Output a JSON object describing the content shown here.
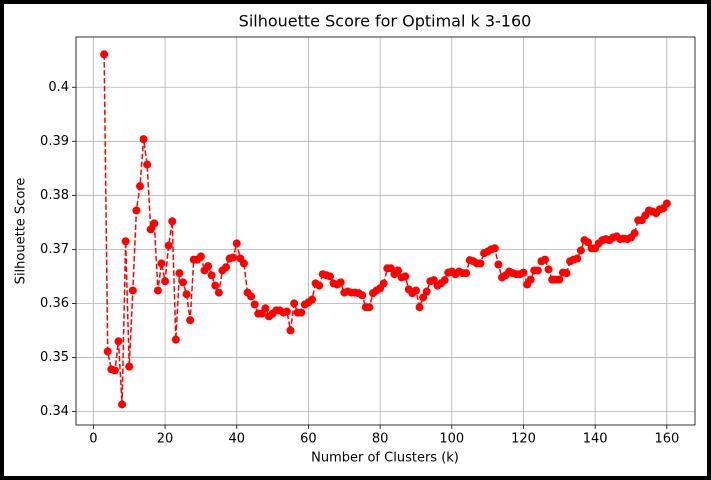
{
  "chart_data": {
    "type": "line",
    "title": "Silhouette Score for Optimal k 3-160",
    "xlabel": "Number of Clusters (k)",
    "ylabel": "Silhouette Score",
    "x": [
      3,
      4,
      5,
      6,
      7,
      8,
      9,
      10,
      11,
      12,
      13,
      14,
      15,
      16,
      17,
      18,
      19,
      20,
      21,
      22,
      23,
      24,
      25,
      26,
      27,
      28,
      29,
      30,
      31,
      32,
      33,
      34,
      35,
      36,
      37,
      38,
      39,
      40,
      41,
      42,
      43,
      44,
      45,
      46,
      47,
      48,
      49,
      50,
      51,
      52,
      53,
      54,
      55,
      56,
      57,
      58,
      59,
      60,
      61,
      62,
      63,
      64,
      65,
      66,
      67,
      68,
      69,
      70,
      71,
      72,
      73,
      74,
      75,
      76,
      77,
      78,
      79,
      80,
      81,
      82,
      83,
      84,
      85,
      86,
      87,
      88,
      89,
      90,
      91,
      92,
      93,
      94,
      95,
      96,
      97,
      98,
      99,
      100,
      101,
      102,
      103,
      104,
      105,
      106,
      107,
      108,
      109,
      110,
      111,
      112,
      113,
      114,
      115,
      116,
      117,
      118,
      119,
      120,
      121,
      122,
      123,
      124,
      125,
      126,
      127,
      128,
      129,
      130,
      131,
      132,
      133,
      134,
      135,
      136,
      137,
      138,
      139,
      140,
      141,
      142,
      143,
      144,
      145,
      146,
      147,
      148,
      149,
      150,
      151,
      152,
      153,
      154,
      155,
      156,
      157,
      158,
      159,
      160
    ],
    "series": [
      {
        "color": "#ff0000",
        "line_style": "dashed",
        "marker": "circle",
        "values": [
          0.4061,
          0.3511,
          0.3478,
          0.3476,
          0.353,
          0.3413,
          0.3715,
          0.3483,
          0.3624,
          0.3772,
          0.3817,
          0.3904,
          0.3857,
          0.3737,
          0.3748,
          0.3624,
          0.3674,
          0.3641,
          0.3707,
          0.3752,
          0.3533,
          0.3656,
          0.3639,
          0.3617,
          0.3569,
          0.3681,
          0.3681,
          0.3687,
          0.3661,
          0.3669,
          0.3652,
          0.3633,
          0.362,
          0.3661,
          0.3667,
          0.3683,
          0.3685,
          0.3711,
          0.3683,
          0.3674,
          0.362,
          0.3613,
          0.3598,
          0.3581,
          0.3581,
          0.3591,
          0.3576,
          0.3581,
          0.3587,
          0.3587,
          0.3583,
          0.3585,
          0.355,
          0.36,
          0.3583,
          0.3583,
          0.3598,
          0.3602,
          0.3607,
          0.3637,
          0.3633,
          0.3654,
          0.3652,
          0.365,
          0.3637,
          0.3635,
          0.3639,
          0.362,
          0.3622,
          0.362,
          0.362,
          0.3619,
          0.3615,
          0.3593,
          0.3593,
          0.3619,
          0.3624,
          0.3628,
          0.3637,
          0.3665,
          0.3665,
          0.3654,
          0.3661,
          0.3648,
          0.365,
          0.3626,
          0.3619,
          0.3624,
          0.3593,
          0.3611,
          0.3622,
          0.3641,
          0.3643,
          0.3633,
          0.3637,
          0.3643,
          0.3657,
          0.3659,
          0.3654,
          0.3659,
          0.3656,
          0.3656,
          0.368,
          0.3678,
          0.3674,
          0.3674,
          0.3693,
          0.3696,
          0.37,
          0.3702,
          0.3672,
          0.3648,
          0.3652,
          0.3659,
          0.3656,
          0.3654,
          0.3654,
          0.3657,
          0.3635,
          0.3644,
          0.3661,
          0.3661,
          0.3678,
          0.3681,
          0.3663,
          0.3644,
          0.3644,
          0.3644,
          0.3657,
          0.3656,
          0.3678,
          0.3681,
          0.3683,
          0.3698,
          0.3717,
          0.3713,
          0.3702,
          0.3702,
          0.3711,
          0.3717,
          0.3719,
          0.3717,
          0.3722,
          0.3724,
          0.3719,
          0.372,
          0.3719,
          0.3722,
          0.373,
          0.3754,
          0.3754,
          0.3763,
          0.3772,
          0.377,
          0.3767,
          0.3774,
          0.3776,
          0.3785
        ]
      }
    ],
    "xlim": [
      -4.85,
      167.85
    ],
    "ylim": [
      0.3375,
      0.4093
    ],
    "xticks": [
      0,
      20,
      40,
      60,
      80,
      100,
      120,
      140,
      160
    ],
    "yticks": [
      0.34,
      0.35,
      0.36,
      0.37,
      0.38,
      0.39,
      0.4
    ],
    "grid": true
  }
}
